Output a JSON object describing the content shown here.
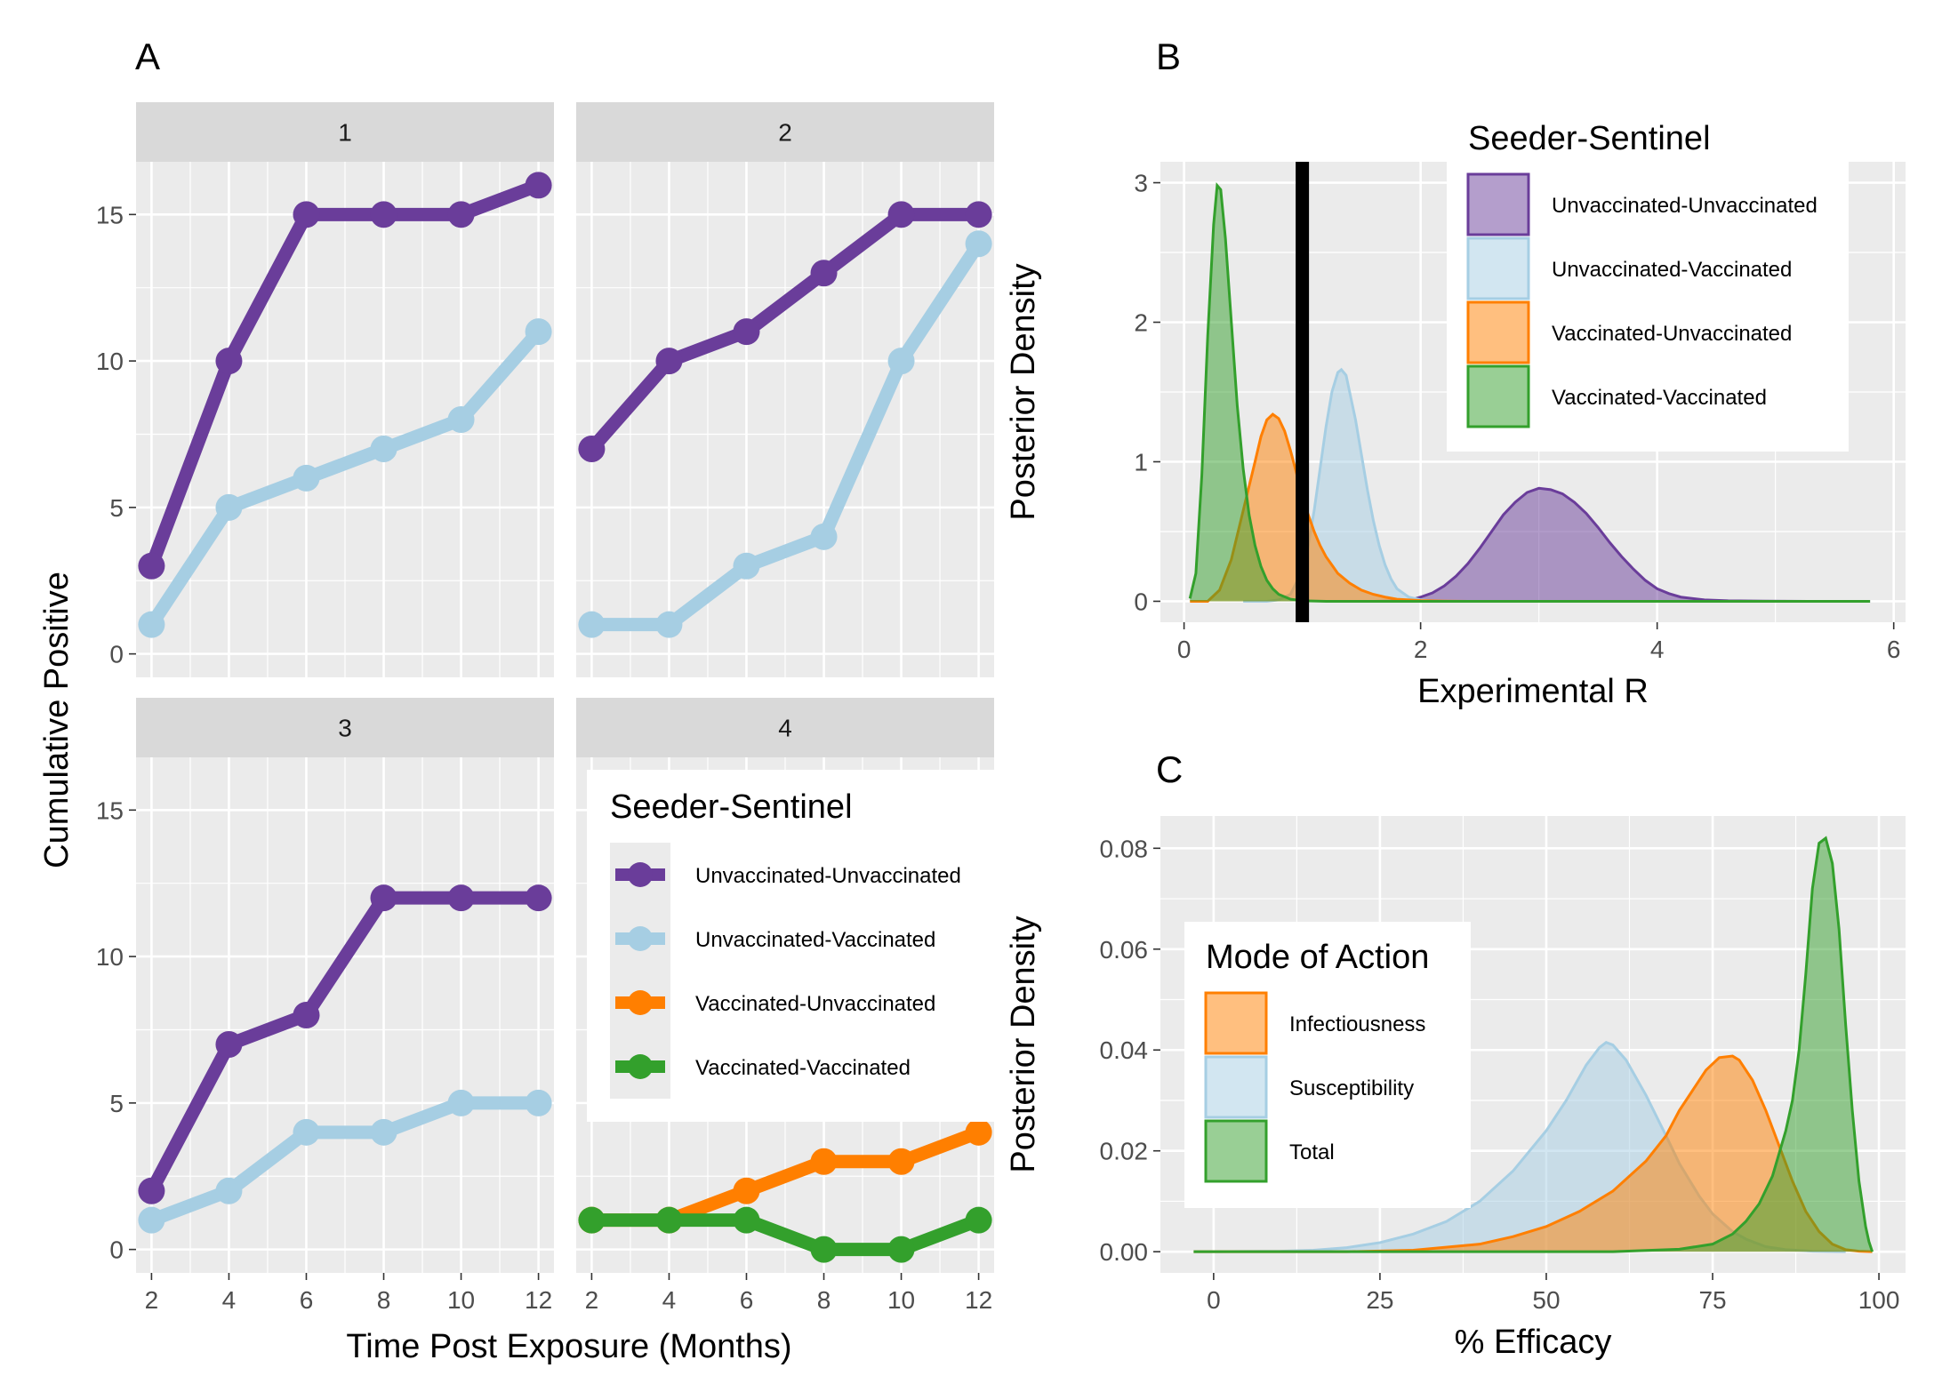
{
  "colors": {
    "uu": "#6A3D9A",
    "uv": "#A6CEE3",
    "vu": "#FF7F00",
    "vv": "#33A02C",
    "panel_bg": "#EBEBEB",
    "grid": "#FFFFFF",
    "strip_bg": "#D9D9D9"
  },
  "panel_labels": {
    "a": "A",
    "b": "B",
    "c": "C"
  },
  "chart_data": [
    {
      "id": "A",
      "type": "line",
      "title": "",
      "xlabel": "Time Post Exposure (Months)",
      "ylabel": "Cumulative Positive",
      "x": [
        2,
        4,
        6,
        8,
        10,
        12
      ],
      "xticks": [
        "2",
        "4",
        "6",
        "8",
        "10",
        "12"
      ],
      "yticks": [
        "0",
        "5",
        "10",
        "15"
      ],
      "xlim": [
        1.6,
        12.4
      ],
      "ylim": [
        -0.8,
        16.8
      ],
      "legend": {
        "title": "Seeder-Sentinel",
        "placement": "inside facet 4, top",
        "entries": [
          "Unvaccinated-Unvaccinated",
          "Unvaccinated-Vaccinated",
          "Vaccinated-Unvaccinated",
          "Vaccinated-Vaccinated"
        ]
      },
      "facets": [
        {
          "label": "1",
          "series": [
            {
              "name": "Unvaccinated-Unvaccinated",
              "values": [
                3,
                10,
                15,
                15,
                15,
                16
              ]
            },
            {
              "name": "Unvaccinated-Vaccinated",
              "values": [
                1,
                5,
                6,
                7,
                8,
                11
              ]
            }
          ]
        },
        {
          "label": "2",
          "series": [
            {
              "name": "Unvaccinated-Unvaccinated",
              "values": [
                7,
                10,
                11,
                13,
                15,
                15
              ]
            },
            {
              "name": "Unvaccinated-Vaccinated",
              "values": [
                1,
                1,
                3,
                4,
                10,
                14
              ]
            }
          ]
        },
        {
          "label": "3",
          "series": [
            {
              "name": "Unvaccinated-Unvaccinated",
              "values": [
                2,
                7,
                8,
                12,
                12,
                12
              ]
            },
            {
              "name": "Unvaccinated-Vaccinated",
              "values": [
                1,
                2,
                4,
                4,
                5,
                5
              ]
            }
          ]
        },
        {
          "label": "4",
          "series": [
            {
              "name": "Vaccinated-Unvaccinated",
              "values": [
                1,
                1,
                2,
                3,
                3,
                4
              ]
            },
            {
              "name": "Vaccinated-Vaccinated",
              "values": [
                1,
                1,
                1,
                0,
                0,
                1
              ]
            }
          ]
        }
      ]
    },
    {
      "id": "B",
      "type": "area",
      "title": "",
      "xlabel": "Experimental R",
      "ylabel": "Posterior Density",
      "xticks": [
        0,
        2,
        4,
        6
      ],
      "yticks": [
        0,
        1,
        2,
        3
      ],
      "xlim": [
        -0.2,
        6.1
      ],
      "ylim": [
        -0.15,
        3.15
      ],
      "reference_line": {
        "x": 1,
        "color": "#000000"
      },
      "legend": {
        "title": "Seeder-Sentinel",
        "placement": "top-right",
        "entries": [
          "Unvaccinated-Unvaccinated",
          "Unvaccinated-Vaccinated",
          "Vaccinated-Unvaccinated",
          "Vaccinated-Vaccinated"
        ]
      },
      "series": [
        {
          "name": "Unvaccinated-Unvaccinated",
          "points": [
            [
              1.2,
              0
            ],
            [
              1.6,
              0.0
            ],
            [
              1.9,
              0.005
            ],
            [
              2.0,
              0.03
            ],
            [
              2.1,
              0.06
            ],
            [
              2.2,
              0.11
            ],
            [
              2.3,
              0.18
            ],
            [
              2.4,
              0.27
            ],
            [
              2.5,
              0.38
            ],
            [
              2.6,
              0.5
            ],
            [
              2.7,
              0.62
            ],
            [
              2.8,
              0.71
            ],
            [
              2.9,
              0.78
            ],
            [
              3.0,
              0.81
            ],
            [
              3.1,
              0.8
            ],
            [
              3.2,
              0.77
            ],
            [
              3.3,
              0.71
            ],
            [
              3.4,
              0.63
            ],
            [
              3.5,
              0.53
            ],
            [
              3.6,
              0.42
            ],
            [
              3.7,
              0.32
            ],
            [
              3.8,
              0.23
            ],
            [
              3.9,
              0.15
            ],
            [
              4.0,
              0.09
            ],
            [
              4.1,
              0.055
            ],
            [
              4.2,
              0.03
            ],
            [
              4.4,
              0.01
            ],
            [
              4.6,
              0.004
            ],
            [
              4.9,
              0.001
            ],
            [
              5.3,
              0
            ],
            [
              5.8,
              0
            ]
          ]
        },
        {
          "name": "Unvaccinated-Vaccinated",
          "points": [
            [
              0.5,
              0
            ],
            [
              0.7,
              0.0
            ],
            [
              0.8,
              0.01
            ],
            [
              0.9,
              0.05
            ],
            [
              1.0,
              0.22
            ],
            [
              1.05,
              0.4
            ],
            [
              1.1,
              0.65
            ],
            [
              1.15,
              0.95
            ],
            [
              1.2,
              1.25
            ],
            [
              1.25,
              1.5
            ],
            [
              1.3,
              1.64
            ],
            [
              1.33,
              1.66
            ],
            [
              1.37,
              1.62
            ],
            [
              1.4,
              1.5
            ],
            [
              1.45,
              1.3
            ],
            [
              1.5,
              1.05
            ],
            [
              1.55,
              0.8
            ],
            [
              1.6,
              0.58
            ],
            [
              1.65,
              0.4
            ],
            [
              1.7,
              0.26
            ],
            [
              1.75,
              0.16
            ],
            [
              1.8,
              0.09
            ],
            [
              1.9,
              0.03
            ],
            [
              2.0,
              0.01
            ],
            [
              2.1,
              0
            ],
            [
              2.3,
              0
            ]
          ]
        },
        {
          "name": "Vaccinated-Unvaccinated",
          "points": [
            [
              0.05,
              0
            ],
            [
              0.2,
              0.0
            ],
            [
              0.3,
              0.08
            ],
            [
              0.4,
              0.3
            ],
            [
              0.5,
              0.65
            ],
            [
              0.6,
              1.0
            ],
            [
              0.65,
              1.18
            ],
            [
              0.7,
              1.3
            ],
            [
              0.75,
              1.34
            ],
            [
              0.8,
              1.31
            ],
            [
              0.85,
              1.22
            ],
            [
              0.9,
              1.08
            ],
            [
              0.95,
              0.92
            ],
            [
              1.0,
              0.76
            ],
            [
              1.05,
              0.62
            ],
            [
              1.1,
              0.5
            ],
            [
              1.15,
              0.4
            ],
            [
              1.2,
              0.32
            ],
            [
              1.3,
              0.2
            ],
            [
              1.4,
              0.13
            ],
            [
              1.5,
              0.08
            ],
            [
              1.6,
              0.05
            ],
            [
              1.7,
              0.03
            ],
            [
              1.8,
              0.015
            ],
            [
              2.0,
              0.005
            ],
            [
              2.2,
              0.001
            ],
            [
              2.4,
              0
            ]
          ]
        },
        {
          "name": "Vaccinated-Vaccinated",
          "points": [
            [
              0.05,
              0.02
            ],
            [
              0.1,
              0.2
            ],
            [
              0.15,
              0.9
            ],
            [
              0.2,
              1.9
            ],
            [
              0.25,
              2.7
            ],
            [
              0.28,
              2.98
            ],
            [
              0.31,
              2.95
            ],
            [
              0.35,
              2.6
            ],
            [
              0.4,
              2.0
            ],
            [
              0.45,
              1.4
            ],
            [
              0.5,
              0.95
            ],
            [
              0.55,
              0.62
            ],
            [
              0.6,
              0.4
            ],
            [
              0.65,
              0.25
            ],
            [
              0.7,
              0.15
            ],
            [
              0.75,
              0.09
            ],
            [
              0.8,
              0.05
            ],
            [
              0.9,
              0.015
            ],
            [
              1.0,
              0.004
            ],
            [
              1.2,
              0
            ],
            [
              2.0,
              0
            ],
            [
              3.0,
              0
            ],
            [
              4.0,
              0
            ],
            [
              5.0,
              0
            ],
            [
              5.8,
              0
            ]
          ]
        }
      ]
    },
    {
      "id": "C",
      "type": "area",
      "title": "",
      "xlabel": "% Efficacy",
      "ylabel": "Posterior Density",
      "xticks": [
        0,
        25,
        50,
        75,
        100
      ],
      "ytick_labels": [
        "0.00",
        "0.02",
        "0.04",
        "0.06",
        "0.08"
      ],
      "yticks": [
        0,
        0.02,
        0.04,
        0.06,
        0.08
      ],
      "xlim": [
        -8,
        104
      ],
      "ylim": [
        -0.0042,
        0.0864
      ],
      "legend": {
        "title": "Mode of Action",
        "placement": "left",
        "entries": [
          "Infectiousness",
          "Susceptibility",
          "Total"
        ]
      },
      "series": [
        {
          "name": "Susceptibility",
          "points": [
            [
              -3,
              0
            ],
            [
              0,
              0.0
            ],
            [
              10,
              0.0001
            ],
            [
              15,
              0.0003
            ],
            [
              20,
              0.0008
            ],
            [
              25,
              0.0018
            ],
            [
              30,
              0.0035
            ],
            [
              35,
              0.006
            ],
            [
              40,
              0.01
            ],
            [
              45,
              0.016
            ],
            [
              50,
              0.024
            ],
            [
              53,
              0.03
            ],
            [
              56,
              0.037
            ],
            [
              58,
              0.0405
            ],
            [
              59,
              0.0415
            ],
            [
              60,
              0.041
            ],
            [
              62,
              0.038
            ],
            [
              65,
              0.031
            ],
            [
              68,
              0.023
            ],
            [
              70,
              0.0175
            ],
            [
              73,
              0.011
            ],
            [
              75,
              0.0075
            ],
            [
              78,
              0.004
            ],
            [
              80,
              0.0025
            ],
            [
              83,
              0.001
            ],
            [
              86,
              0.0004
            ],
            [
              90,
              0.0001
            ],
            [
              95,
              0
            ]
          ]
        },
        {
          "name": "Infectiousness",
          "points": [
            [
              -3,
              0
            ],
            [
              20,
              0.0
            ],
            [
              30,
              0.0003
            ],
            [
              40,
              0.0015
            ],
            [
              45,
              0.003
            ],
            [
              50,
              0.005
            ],
            [
              55,
              0.008
            ],
            [
              60,
              0.012
            ],
            [
              65,
              0.018
            ],
            [
              68,
              0.023
            ],
            [
              70,
              0.028
            ],
            [
              72,
              0.032
            ],
            [
              74,
              0.036
            ],
            [
              76,
              0.0385
            ],
            [
              78,
              0.0388
            ],
            [
              79,
              0.038
            ],
            [
              81,
              0.034
            ],
            [
              83,
              0.028
            ],
            [
              85,
              0.021
            ],
            [
              87,
              0.014
            ],
            [
              89,
              0.008
            ],
            [
              91,
              0.004
            ],
            [
              93,
              0.0015
            ],
            [
              95,
              0.0004
            ],
            [
              97,
              0.0001
            ],
            [
              99,
              0
            ]
          ]
        },
        {
          "name": "Total",
          "points": [
            [
              -3,
              0
            ],
            [
              60,
              0.0
            ],
            [
              70,
              0.0005
            ],
            [
              75,
              0.0015
            ],
            [
              78,
              0.0035
            ],
            [
              80,
              0.006
            ],
            [
              82,
              0.0095
            ],
            [
              84,
              0.015
            ],
            [
              86,
              0.024
            ],
            [
              87,
              0.03
            ],
            [
              88,
              0.04
            ],
            [
              89,
              0.055
            ],
            [
              90,
              0.072
            ],
            [
              91,
              0.081
            ],
            [
              92,
              0.082
            ],
            [
              93,
              0.077
            ],
            [
              94,
              0.064
            ],
            [
              95,
              0.045
            ],
            [
              96,
              0.028
            ],
            [
              97,
              0.014
            ],
            [
              98,
              0.005
            ],
            [
              98.5,
              0.002
            ],
            [
              99,
              0
            ]
          ]
        }
      ]
    }
  ]
}
